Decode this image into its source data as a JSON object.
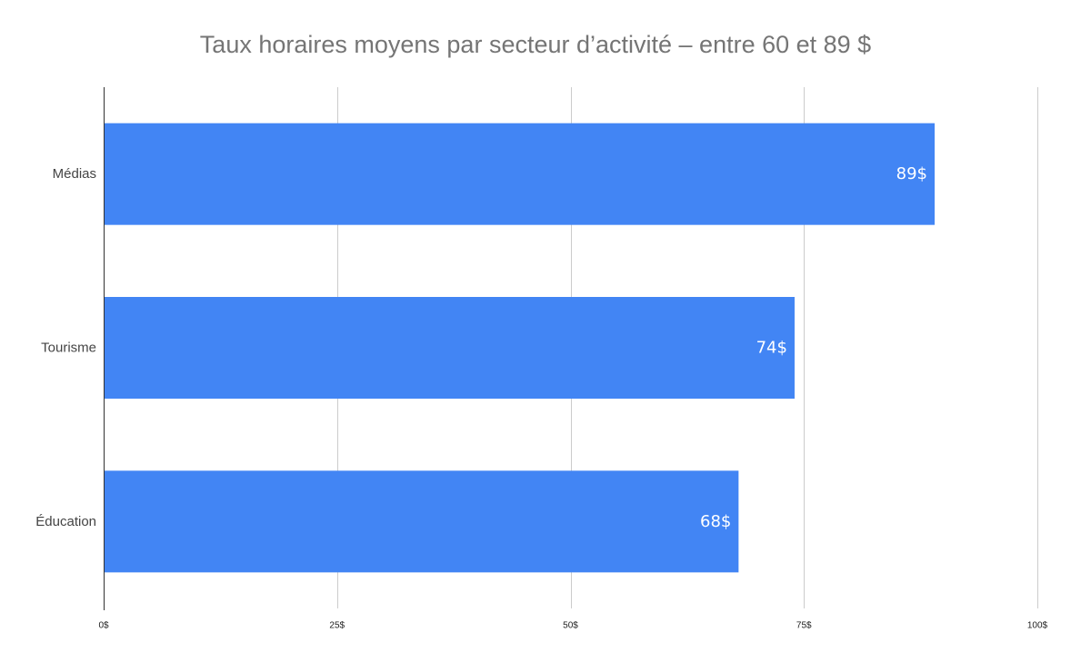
{
  "chart_data": {
    "type": "bar",
    "orientation": "horizontal",
    "title": "Taux horaires moyens par secteur d’activité – entre 60 et 89 $",
    "categories": [
      "Médias",
      "Tourisme",
      "Éducation"
    ],
    "values": [
      89,
      74,
      68
    ],
    "data_labels": [
      "89$",
      "74$",
      "68$"
    ],
    "xlim": [
      0,
      100
    ],
    "x_ticks": [
      0,
      25,
      50,
      75,
      100
    ],
    "x_tick_labels": [
      "0$",
      "25$",
      "50$",
      "75$",
      "100$"
    ],
    "xlabel": "",
    "ylabel": "",
    "grid": true,
    "legend": "none",
    "colors": {
      "bar": "#4285f4",
      "grid": "#cccccc",
      "axis": "#333333",
      "title": "#757575"
    }
  }
}
